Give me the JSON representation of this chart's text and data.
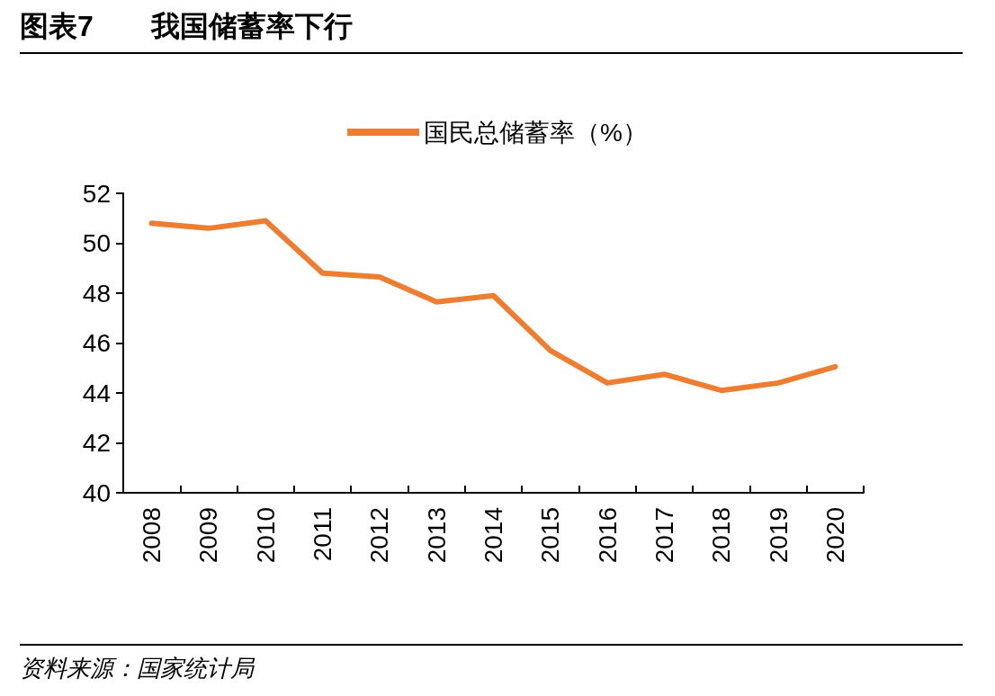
{
  "chart_data": {
    "type": "line",
    "title": "图表7　　我国储蓄率下行",
    "categories": [
      "2008",
      "2009",
      "2010",
      "2011",
      "2012",
      "2013",
      "2014",
      "2015",
      "2016",
      "2017",
      "2018",
      "2019",
      "2020"
    ],
    "series": [
      {
        "name": "国民总储蓄率（%）",
        "color": "#ed7d31",
        "values": [
          50.8,
          50.6,
          50.9,
          48.8,
          48.65,
          47.65,
          47.9,
          45.7,
          44.4,
          44.75,
          44.1,
          44.4,
          45.05
        ]
      }
    ],
    "ylim": [
      40,
      52
    ],
    "yticks": [
      40,
      42,
      44,
      46,
      48,
      50,
      52
    ],
    "grid": false,
    "legend": "top",
    "marker": "none",
    "line_style": "solid",
    "annotations": [
      "资料来源：国家统计局"
    ]
  }
}
